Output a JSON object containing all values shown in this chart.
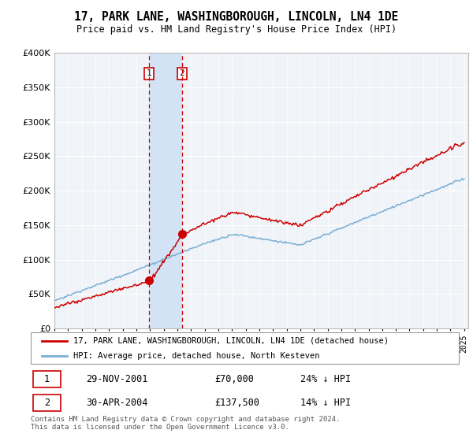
{
  "title": "17, PARK LANE, WASHINGBOROUGH, LINCOLN, LN4 1DE",
  "subtitle": "Price paid vs. HM Land Registry's House Price Index (HPI)",
  "hpi_label": "HPI: Average price, detached house, North Kesteven",
  "property_label": "17, PARK LANE, WASHINGBOROUGH, LINCOLN, LN4 1DE (detached house)",
  "sale1_date": "29-NOV-2001",
  "sale1_price": "£70,000",
  "sale1_hpi": "24% ↓ HPI",
  "sale1_year": 2001.91,
  "sale1_value": 70000,
  "sale2_date": "30-APR-2004",
  "sale2_price": "£137,500",
  "sale2_hpi": "14% ↓ HPI",
  "sale2_year": 2004.33,
  "sale2_value": 137500,
  "property_color": "#cc0000",
  "hpi_color": "#7aaed6",
  "highlight_fill": "#ddeeff",
  "highlight_edge": "#cc0000",
  "footer": "Contains HM Land Registry data © Crown copyright and database right 2024.\nThis data is licensed under the Open Government Licence v3.0.",
  "bg_color": "#f0f4f8",
  "ylim_max": 400000,
  "ytick_step": 50000
}
